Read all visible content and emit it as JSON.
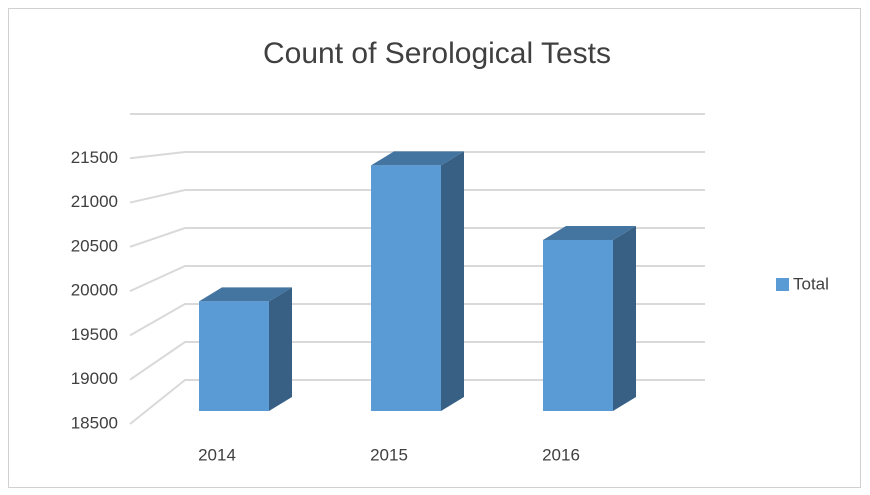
{
  "chart_data": {
    "type": "bar3d",
    "title": "Count of Serological Tests",
    "categories": [
      "2014",
      "2015",
      "2016"
    ],
    "series": [
      {
        "name": "Total",
        "color": "#5b9bd5",
        "values": [
          19750,
          21300,
          20450
        ]
      }
    ],
    "ylim": [
      18500,
      22000
    ],
    "yticks": [
      18500,
      19000,
      19500,
      20000,
      20500,
      21000,
      21500
    ],
    "grid": true,
    "legend": "right"
  }
}
